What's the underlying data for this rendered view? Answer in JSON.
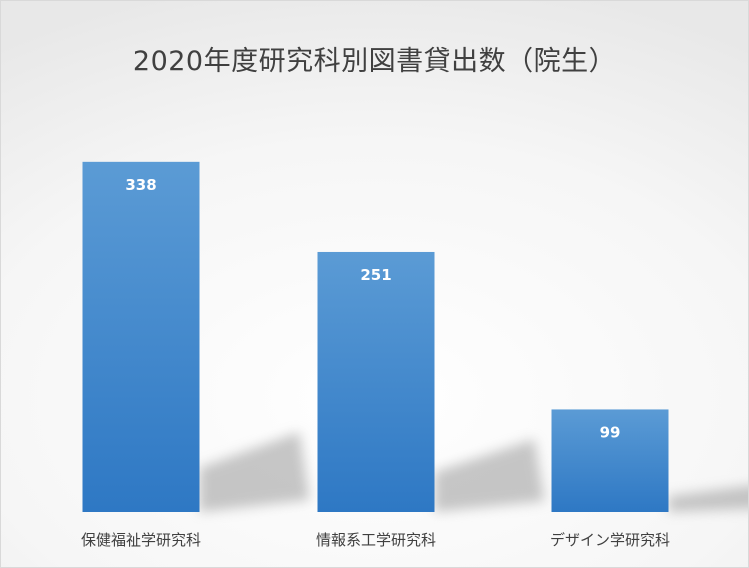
{
  "chart_data": {
    "type": "bar",
    "title": "2020年度研究科別図書貸出数（院生）",
    "categories": [
      "保健福祉学研究科",
      "情報系工学研究科",
      "デザイン学研究科"
    ],
    "values": [
      338,
      251,
      99
    ],
    "data_labels": [
      "338",
      "251",
      "99"
    ],
    "ylim": [
      0,
      400
    ],
    "grid": false,
    "legend": "none",
    "colors": {
      "bar_top": "#5b9bd5",
      "bar_bottom": "#2e78c4",
      "label": "#ffffff",
      "axis_text": "#404040"
    }
  }
}
